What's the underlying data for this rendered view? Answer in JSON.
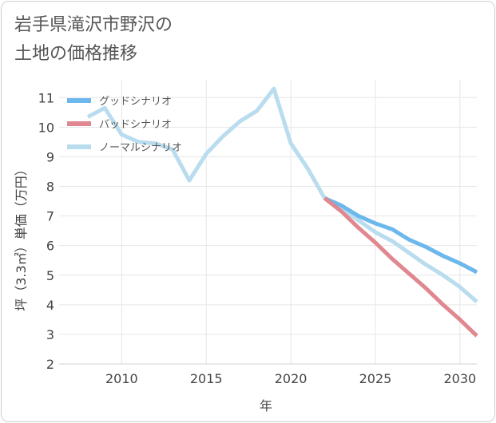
{
  "title": {
    "line1": "岩手県滝沢市野沢の",
    "line2": "土地の価格推移"
  },
  "chart_data": {
    "type": "line",
    "xlabel": "年",
    "ylabel": "坪（3.3㎡）単価（万円）",
    "xlim": [
      2006.3,
      2031
    ],
    "ylim": [
      2,
      11.6
    ],
    "xticks": [
      2010,
      2015,
      2020,
      2025,
      2030
    ],
    "yticks": [
      2,
      3,
      4,
      5,
      6,
      7,
      8,
      9,
      10,
      11
    ],
    "grid": true,
    "legend_position": "top-left",
    "series": [
      {
        "name": "グッドシナリオ",
        "color": "#6cb8ec",
        "x": [
          2022,
          2023,
          2024,
          2025,
          2026,
          2027,
          2028,
          2029,
          2030,
          2031
        ],
        "y": [
          7.6,
          7.35,
          7.0,
          6.75,
          6.55,
          6.2,
          5.95,
          5.65,
          5.4,
          5.1
        ]
      },
      {
        "name": "バッドシナリオ",
        "color": "#e0878f",
        "x": [
          2022,
          2023,
          2024,
          2025,
          2026,
          2027,
          2028,
          2029,
          2030,
          2031
        ],
        "y": [
          7.6,
          7.15,
          6.6,
          6.1,
          5.55,
          5.05,
          4.55,
          4.0,
          3.5,
          2.95
        ]
      },
      {
        "name": "ノーマルシナリオ",
        "color": "#b9dcee",
        "x": [
          2008,
          2009,
          2010,
          2011,
          2012,
          2013,
          2014,
          2015,
          2016,
          2017,
          2018,
          2019,
          2020,
          2021,
          2022,
          2023,
          2024,
          2025,
          2026,
          2027,
          2028,
          2029,
          2030,
          2031
        ],
        "y": [
          10.35,
          10.65,
          9.75,
          9.5,
          9.45,
          9.25,
          8.2,
          9.1,
          9.7,
          10.2,
          10.55,
          11.3,
          9.45,
          8.6,
          7.6,
          7.25,
          6.85,
          6.45,
          6.15,
          5.75,
          5.35,
          5.0,
          4.6,
          4.1
        ]
      }
    ]
  }
}
